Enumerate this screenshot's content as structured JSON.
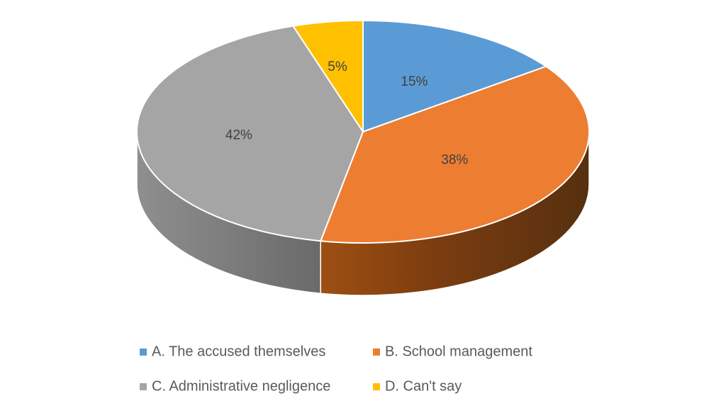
{
  "chart_data": {
    "type": "pie",
    "style": "3d",
    "title": "",
    "legend_position": "bottom",
    "categories": [
      "A. The accused themselves",
      "B. School management",
      "C. Administrative negligence",
      "D. Can't say"
    ],
    "values": [
      15,
      38,
      42,
      5
    ],
    "labels": [
      "15%",
      "38%",
      "42%",
      "5%"
    ],
    "colors": [
      "#5B9BD5",
      "#ED7D31",
      "#A5A5A5",
      "#FFC000"
    ]
  }
}
